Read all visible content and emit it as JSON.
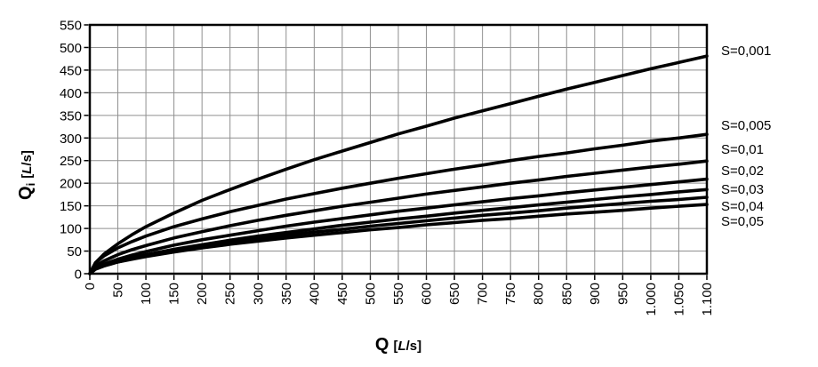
{
  "chart_data": {
    "type": "line",
    "title": "",
    "xlabel": "Q [L/s]",
    "ylabel": "Qi [L/s]",
    "xlim": [
      0,
      1100
    ],
    "ylim": [
      0,
      550
    ],
    "x_tick_step": 50,
    "y_tick_step": 50,
    "grid": true,
    "legend_position": "right-of-plot-labels",
    "x_tick_labels": [
      "0",
      "50",
      "100",
      "150",
      "200",
      "250",
      "300",
      "350",
      "400",
      "450",
      "500",
      "550",
      "600",
      "650",
      "700",
      "750",
      "800",
      "850",
      "900",
      "950",
      "1.000",
      "1.050",
      "1.100"
    ],
    "y_tick_labels": [
      "0",
      "50",
      "100",
      "150",
      "200",
      "250",
      "300",
      "350",
      "400",
      "450",
      "500",
      "550"
    ],
    "x": [
      0,
      10,
      25,
      50,
      75,
      100,
      150,
      200,
      250,
      300,
      350,
      400,
      450,
      500,
      550,
      600,
      650,
      700,
      750,
      800,
      850,
      900,
      950,
      1000,
      1050,
      1100
    ],
    "series": [
      {
        "name": "S=0,001",
        "values": [
          0,
          24,
          43,
          66,
          86,
          104,
          134,
          162,
          186,
          209,
          231,
          252,
          271,
          290,
          309,
          326,
          344,
          360,
          376,
          392,
          408,
          423,
          438,
          453,
          467,
          481
        ]
      },
      {
        "name": "S=0,005",
        "values": [
          0,
          24,
          39,
          57,
          71,
          83,
          104,
          121,
          137,
          151,
          165,
          177,
          189,
          200,
          211,
          221,
          231,
          240,
          250,
          259,
          267,
          276,
          284,
          293,
          300,
          308
        ]
      },
      {
        "name": "S=0,01",
        "values": [
          0,
          17,
          28,
          42,
          53,
          62,
          79,
          93,
          106,
          118,
          129,
          139,
          149,
          158,
          167,
          176,
          184,
          192,
          200,
          207,
          215,
          222,
          229,
          236,
          242,
          249
        ]
      },
      {
        "name": "S=0,02",
        "values": [
          0,
          12,
          21,
          32,
          41,
          49,
          63,
          75,
          85,
          95,
          105,
          114,
          122,
          130,
          138,
          145,
          152,
          159,
          166,
          172,
          179,
          185,
          191,
          197,
          203,
          209
        ]
      },
      {
        "name": "S=0,03",
        "values": [
          0,
          10,
          18,
          27,
          35,
          42,
          54,
          64,
          74,
          83,
          91,
          99,
          107,
          114,
          121,
          127,
          134,
          140,
          146,
          152,
          158,
          164,
          170,
          175,
          181,
          186
        ]
      },
      {
        "name": "S=0,04",
        "values": [
          0,
          10,
          17,
          26,
          33,
          40,
          51,
          60,
          69,
          77,
          85,
          92,
          98,
          105,
          111,
          117,
          123,
          129,
          134,
          139,
          145,
          150,
          155,
          160,
          164,
          169
        ]
      },
      {
        "name": "S=0,05",
        "values": [
          0,
          10,
          17,
          26,
          32,
          38,
          48,
          57,
          65,
          72,
          79,
          85,
          91,
          97,
          102,
          108,
          113,
          118,
          122,
          127,
          132,
          136,
          140,
          145,
          149,
          153
        ]
      }
    ]
  },
  "axes": {
    "y_title": {
      "symbol": "Q",
      "subscript": "i",
      "unit_open": "[",
      "unit_letter": "L",
      "unit_close": "/s]"
    },
    "x_title": {
      "symbol": "Q",
      "unit_open": "[",
      "unit_letter": "L",
      "unit_close": "/s]"
    }
  },
  "colors": {
    "curve": "#000000",
    "grid": "#8f8f8f",
    "axis": "#000000",
    "background": "#ffffff"
  }
}
